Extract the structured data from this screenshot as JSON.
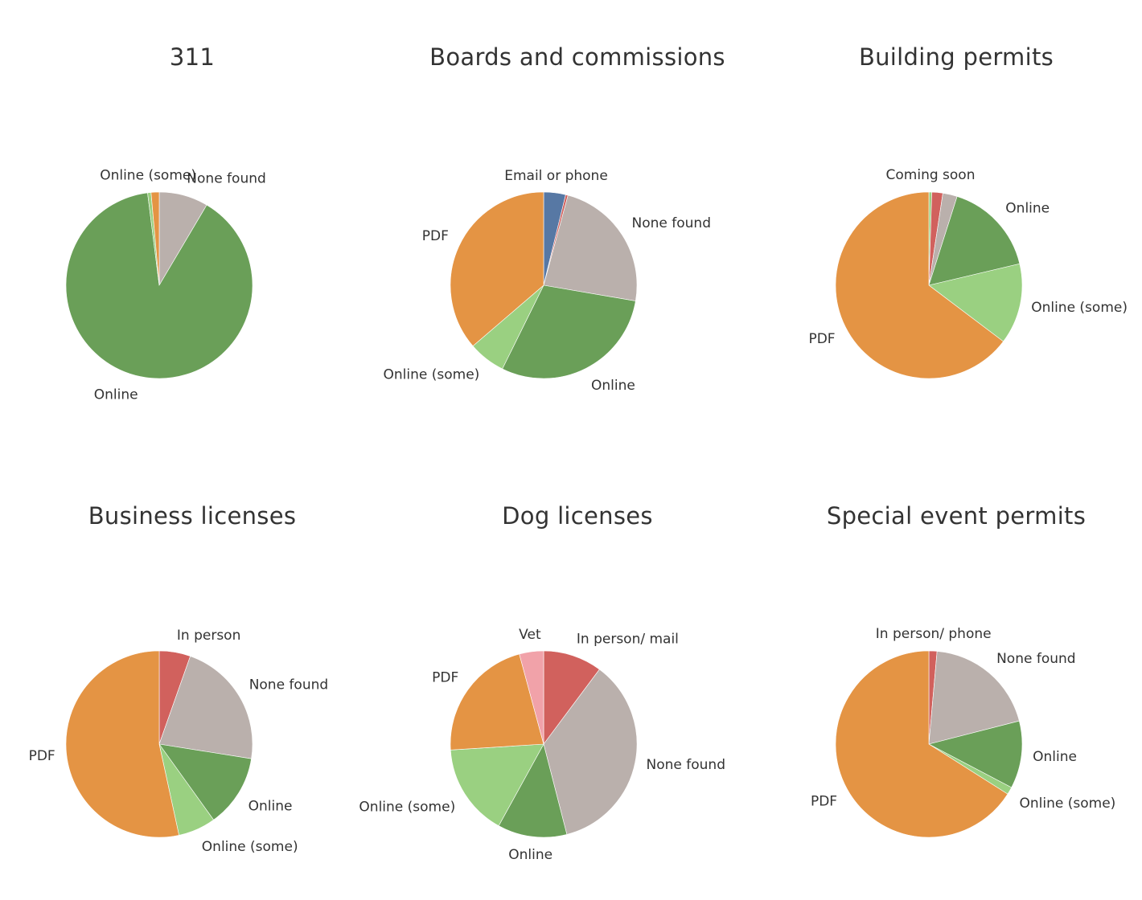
{
  "chart_data": [
    {
      "type": "pie",
      "title": "311",
      "slices": [
        {
          "label": "None found",
          "value": 8.5,
          "color": "#bab0ac",
          "show_label": true
        },
        {
          "label": "Online",
          "value": 89.5,
          "color": "#6a9f58",
          "show_label": true
        },
        {
          "label": "Online (some)",
          "value": 0.6,
          "color": "#9ad081",
          "show_label": true
        },
        {
          "label": "PDF",
          "value": 1.4,
          "color": "#e49444",
          "show_label": false
        }
      ]
    },
    {
      "type": "pie",
      "title": "Boards and commissions",
      "slices": [
        {
          "label": "Email or phone",
          "value": 3.8,
          "color": "#5778a4",
          "show_label": true
        },
        {
          "label": "In person",
          "value": 0.4,
          "color": "#d1615d",
          "show_label": false
        },
        {
          "label": "None found",
          "value": 23.5,
          "color": "#bab0ac",
          "show_label": true
        },
        {
          "label": "Online",
          "value": 29.6,
          "color": "#6a9f58",
          "show_label": true
        },
        {
          "label": "Online (some)",
          "value": 6.4,
          "color": "#9ad081",
          "show_label": true
        },
        {
          "label": "PDF",
          "value": 36.3,
          "color": "#e49444",
          "show_label": true
        }
      ]
    },
    {
      "type": "pie",
      "title": "Building permits",
      "slices": [
        {
          "label": "Coming soon",
          "value": 0.5,
          "color": "#9ad081",
          "show_label": true
        },
        {
          "label": "In person",
          "value": 1.9,
          "color": "#d1615d",
          "show_label": false
        },
        {
          "label": "None found",
          "value": 2.5,
          "color": "#bab0ac",
          "show_label": false
        },
        {
          "label": "Online",
          "value": 16.4,
          "color": "#6a9f58",
          "show_label": true
        },
        {
          "label": "Online (some)",
          "value": 14.0,
          "color": "#9ad081",
          "show_label": true
        },
        {
          "label": "PDF",
          "value": 64.7,
          "color": "#e49444",
          "show_label": true
        }
      ]
    },
    {
      "type": "pie",
      "title": "Business licenses",
      "slices": [
        {
          "label": "In person",
          "value": 5.4,
          "color": "#d1615d",
          "show_label": true
        },
        {
          "label": "None found",
          "value": 22.1,
          "color": "#bab0ac",
          "show_label": true
        },
        {
          "label": "Online",
          "value": 12.6,
          "color": "#6a9f58",
          "show_label": true
        },
        {
          "label": "Online (some)",
          "value": 6.5,
          "color": "#9ad081",
          "show_label": true
        },
        {
          "label": "PDF",
          "value": 53.4,
          "color": "#e49444",
          "show_label": true
        }
      ]
    },
    {
      "type": "pie",
      "title": "Dog licenses",
      "slices": [
        {
          "label": "In person/ mail",
          "value": 10.2,
          "color": "#d1615d",
          "show_label": true
        },
        {
          "label": "None found",
          "value": 35.8,
          "color": "#bab0ac",
          "show_label": true
        },
        {
          "label": "Online",
          "value": 12.0,
          "color": "#6a9f58",
          "show_label": true
        },
        {
          "label": "Online (some)",
          "value": 16.0,
          "color": "#9ad081",
          "show_label": true
        },
        {
          "label": "PDF",
          "value": 21.8,
          "color": "#e49444",
          "show_label": true
        },
        {
          "label": "Vet",
          "value": 4.2,
          "color": "#f1a2a9",
          "show_label": true
        }
      ]
    },
    {
      "type": "pie",
      "title": "Special event permits",
      "slices": [
        {
          "label": "In person/ phone",
          "value": 1.4,
          "color": "#d1615d",
          "show_label": true
        },
        {
          "label": "None found",
          "value": 19.6,
          "color": "#bab0ac",
          "show_label": true
        },
        {
          "label": "Online",
          "value": 11.7,
          "color": "#6a9f58",
          "show_label": true
        },
        {
          "label": "Online (some)",
          "value": 1.3,
          "color": "#9ad081",
          "show_label": true
        },
        {
          "label": "PDF",
          "value": 66.0,
          "color": "#e49444",
          "show_label": true
        }
      ]
    }
  ]
}
